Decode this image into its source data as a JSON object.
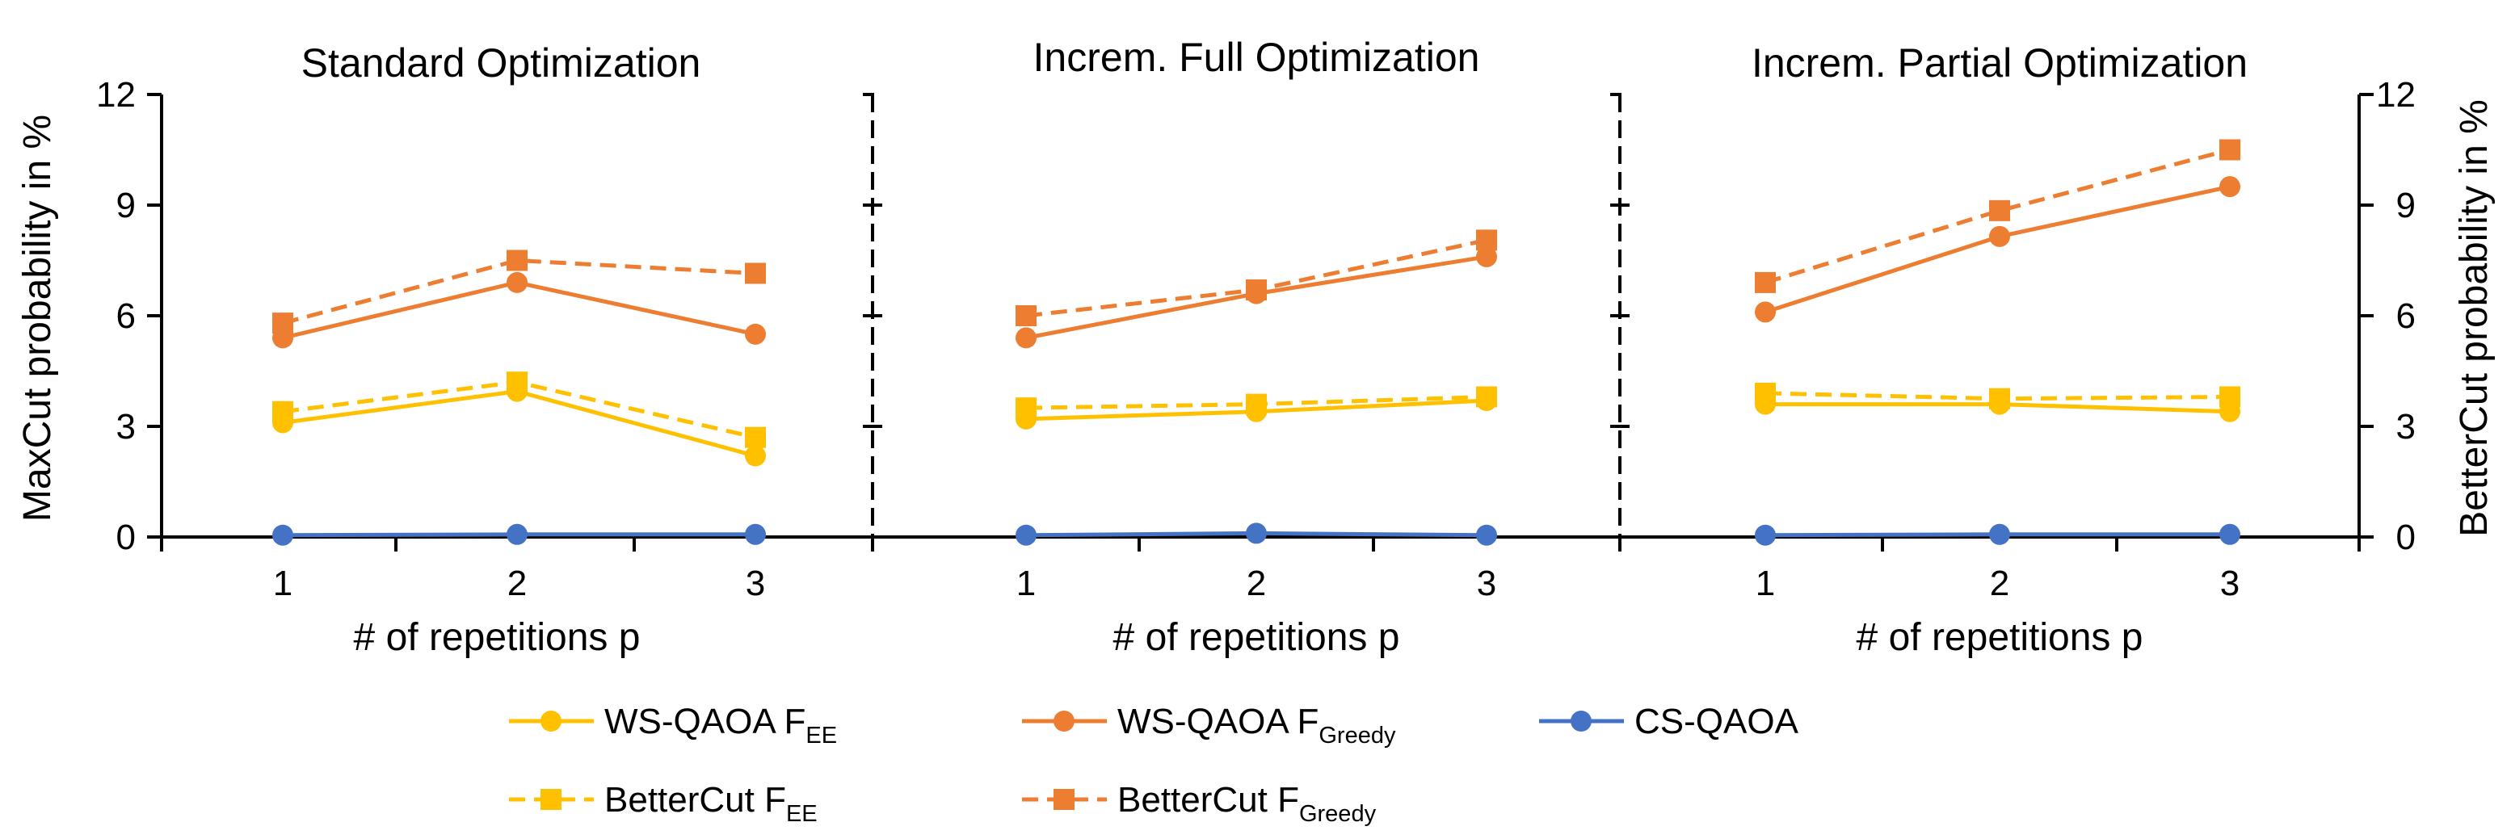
{
  "chart_data": {
    "type": "line",
    "y_axis_left": {
      "label": "MaxCut probability in %",
      "ylim": [
        0,
        12
      ],
      "ticks": [
        "0",
        "3",
        "6",
        "9",
        "12"
      ]
    },
    "y_axis_right": {
      "label": "BetterCut probability in %",
      "ylim": [
        0,
        12
      ],
      "ticks": [
        "0",
        "3",
        "6",
        "9",
        "12"
      ]
    },
    "x_axis": {
      "label": "# of repetitions p",
      "categories": [
        "1",
        "2",
        "3"
      ]
    },
    "series_styles": [
      {
        "key": "ws_ee",
        "color": "#FFC000",
        "dashed": false,
        "marker": "circle"
      },
      {
        "key": "ws_greedy",
        "color": "#ED7D31",
        "dashed": false,
        "marker": "circle"
      },
      {
        "key": "cs",
        "color": "#4472C4",
        "dashed": false,
        "marker": "circle"
      },
      {
        "key": "bc_ee",
        "color": "#FFC000",
        "dashed": true,
        "marker": "square"
      },
      {
        "key": "bc_greedy",
        "color": "#ED7D31",
        "dashed": true,
        "marker": "square"
      }
    ],
    "panels": [
      {
        "title": "Standard Optimization",
        "series": {
          "bc_ee": [
            3.4,
            4.2,
            2.7
          ],
          "ws_ee": [
            3.1,
            3.95,
            2.2
          ],
          "bc_greedy": [
            5.8,
            7.5,
            7.15
          ],
          "ws_greedy": [
            5.4,
            6.9,
            5.5
          ],
          "cs": [
            0.05,
            0.07,
            0.07
          ]
        }
      },
      {
        "title": "Increm. Full Optimization",
        "series": {
          "bc_ee": [
            3.5,
            3.6,
            3.8
          ],
          "ws_ee": [
            3.2,
            3.4,
            3.7
          ],
          "bc_greedy": [
            6.0,
            6.7,
            8.05
          ],
          "ws_greedy": [
            5.4,
            6.6,
            7.6
          ],
          "cs": [
            0.05,
            0.1,
            0.05
          ]
        }
      },
      {
        "title": "Increm. Partial Optimization",
        "series": {
          "bc_ee": [
            3.9,
            3.75,
            3.8
          ],
          "ws_ee": [
            3.6,
            3.6,
            3.4
          ],
          "bc_greedy": [
            6.9,
            8.85,
            10.5
          ],
          "ws_greedy": [
            6.1,
            8.15,
            9.5
          ],
          "cs": [
            0.05,
            0.07,
            0.07
          ]
        }
      }
    ],
    "legend": [
      {
        "key": "ws_ee",
        "label": "WS-QAOA F",
        "subscript": "EE"
      },
      {
        "key": "ws_greedy",
        "label": "WS-QAOA F",
        "subscript": "Greedy"
      },
      {
        "key": "cs",
        "label": "CS-QAOA",
        "subscript": ""
      },
      {
        "key": "bc_ee",
        "label": "BetterCut F",
        "subscript": "EE"
      },
      {
        "key": "bc_greedy",
        "label": "BetterCut F",
        "subscript": "Greedy"
      }
    ]
  }
}
